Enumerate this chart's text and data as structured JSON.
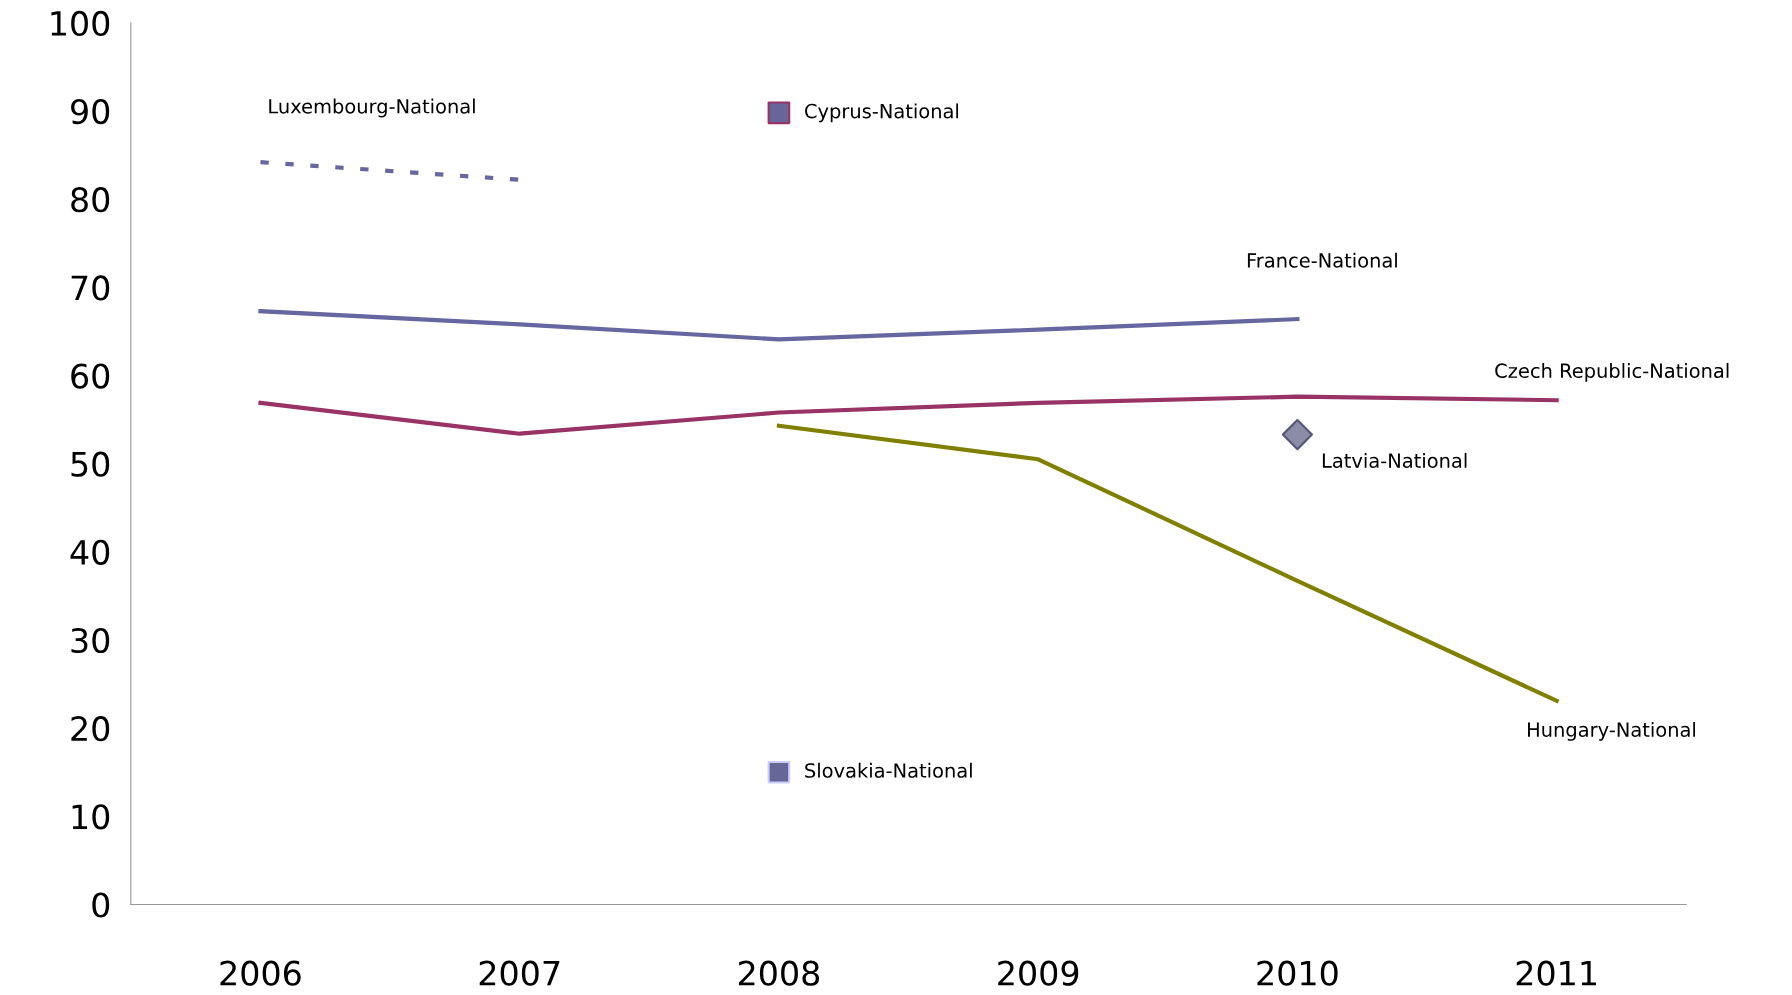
{
  "chart_data": {
    "type": "line",
    "categories": [
      "2006",
      "2007",
      "2008",
      "2009",
      "2010",
      "2011"
    ],
    "series": [
      {
        "name": "Luxembourg-National",
        "color": "#6666a0",
        "line_style": "dotted",
        "marker": "none",
        "values": [
          84.2,
          82.2,
          null,
          null,
          null,
          null
        ]
      },
      {
        "name": "Cyprus-National",
        "type": "scatter",
        "color": "#666699",
        "marker": "square",
        "values": [
          null,
          null,
          89.8,
          null,
          null,
          null
        ]
      },
      {
        "name": "France-National",
        "color": "#6666a0",
        "line_style": "solid",
        "marker": "none",
        "values": [
          67.3,
          65.8,
          64.1,
          65.2,
          66.4,
          null
        ]
      },
      {
        "name": "Czech Republic-National",
        "color": "#993366",
        "line_style": "solid",
        "marker": "none",
        "values": [
          56.9,
          53.4,
          55.8,
          56.9,
          57.6,
          57.2
        ]
      },
      {
        "name": "Latvia-National",
        "type": "scatter",
        "color": "#8c8ca6",
        "marker": "diamond",
        "values": [
          null,
          null,
          null,
          null,
          53.3,
          null
        ]
      },
      {
        "name": "Hungary-National",
        "color": "#808000",
        "line_style": "solid",
        "marker": "none",
        "values": [
          null,
          null,
          54.3,
          50.5,
          36.7,
          23.1
        ]
      },
      {
        "name": "Slovakia-National",
        "type": "scatter",
        "color": "#666699",
        "marker": "square",
        "values": [
          null,
          null,
          15.0,
          null,
          null,
          null
        ]
      }
    ],
    "ylim": [
      0,
      100
    ],
    "yticks": [
      0,
      10,
      20,
      30,
      40,
      50,
      60,
      70,
      80,
      90,
      100
    ],
    "grid": false,
    "legend": false
  }
}
